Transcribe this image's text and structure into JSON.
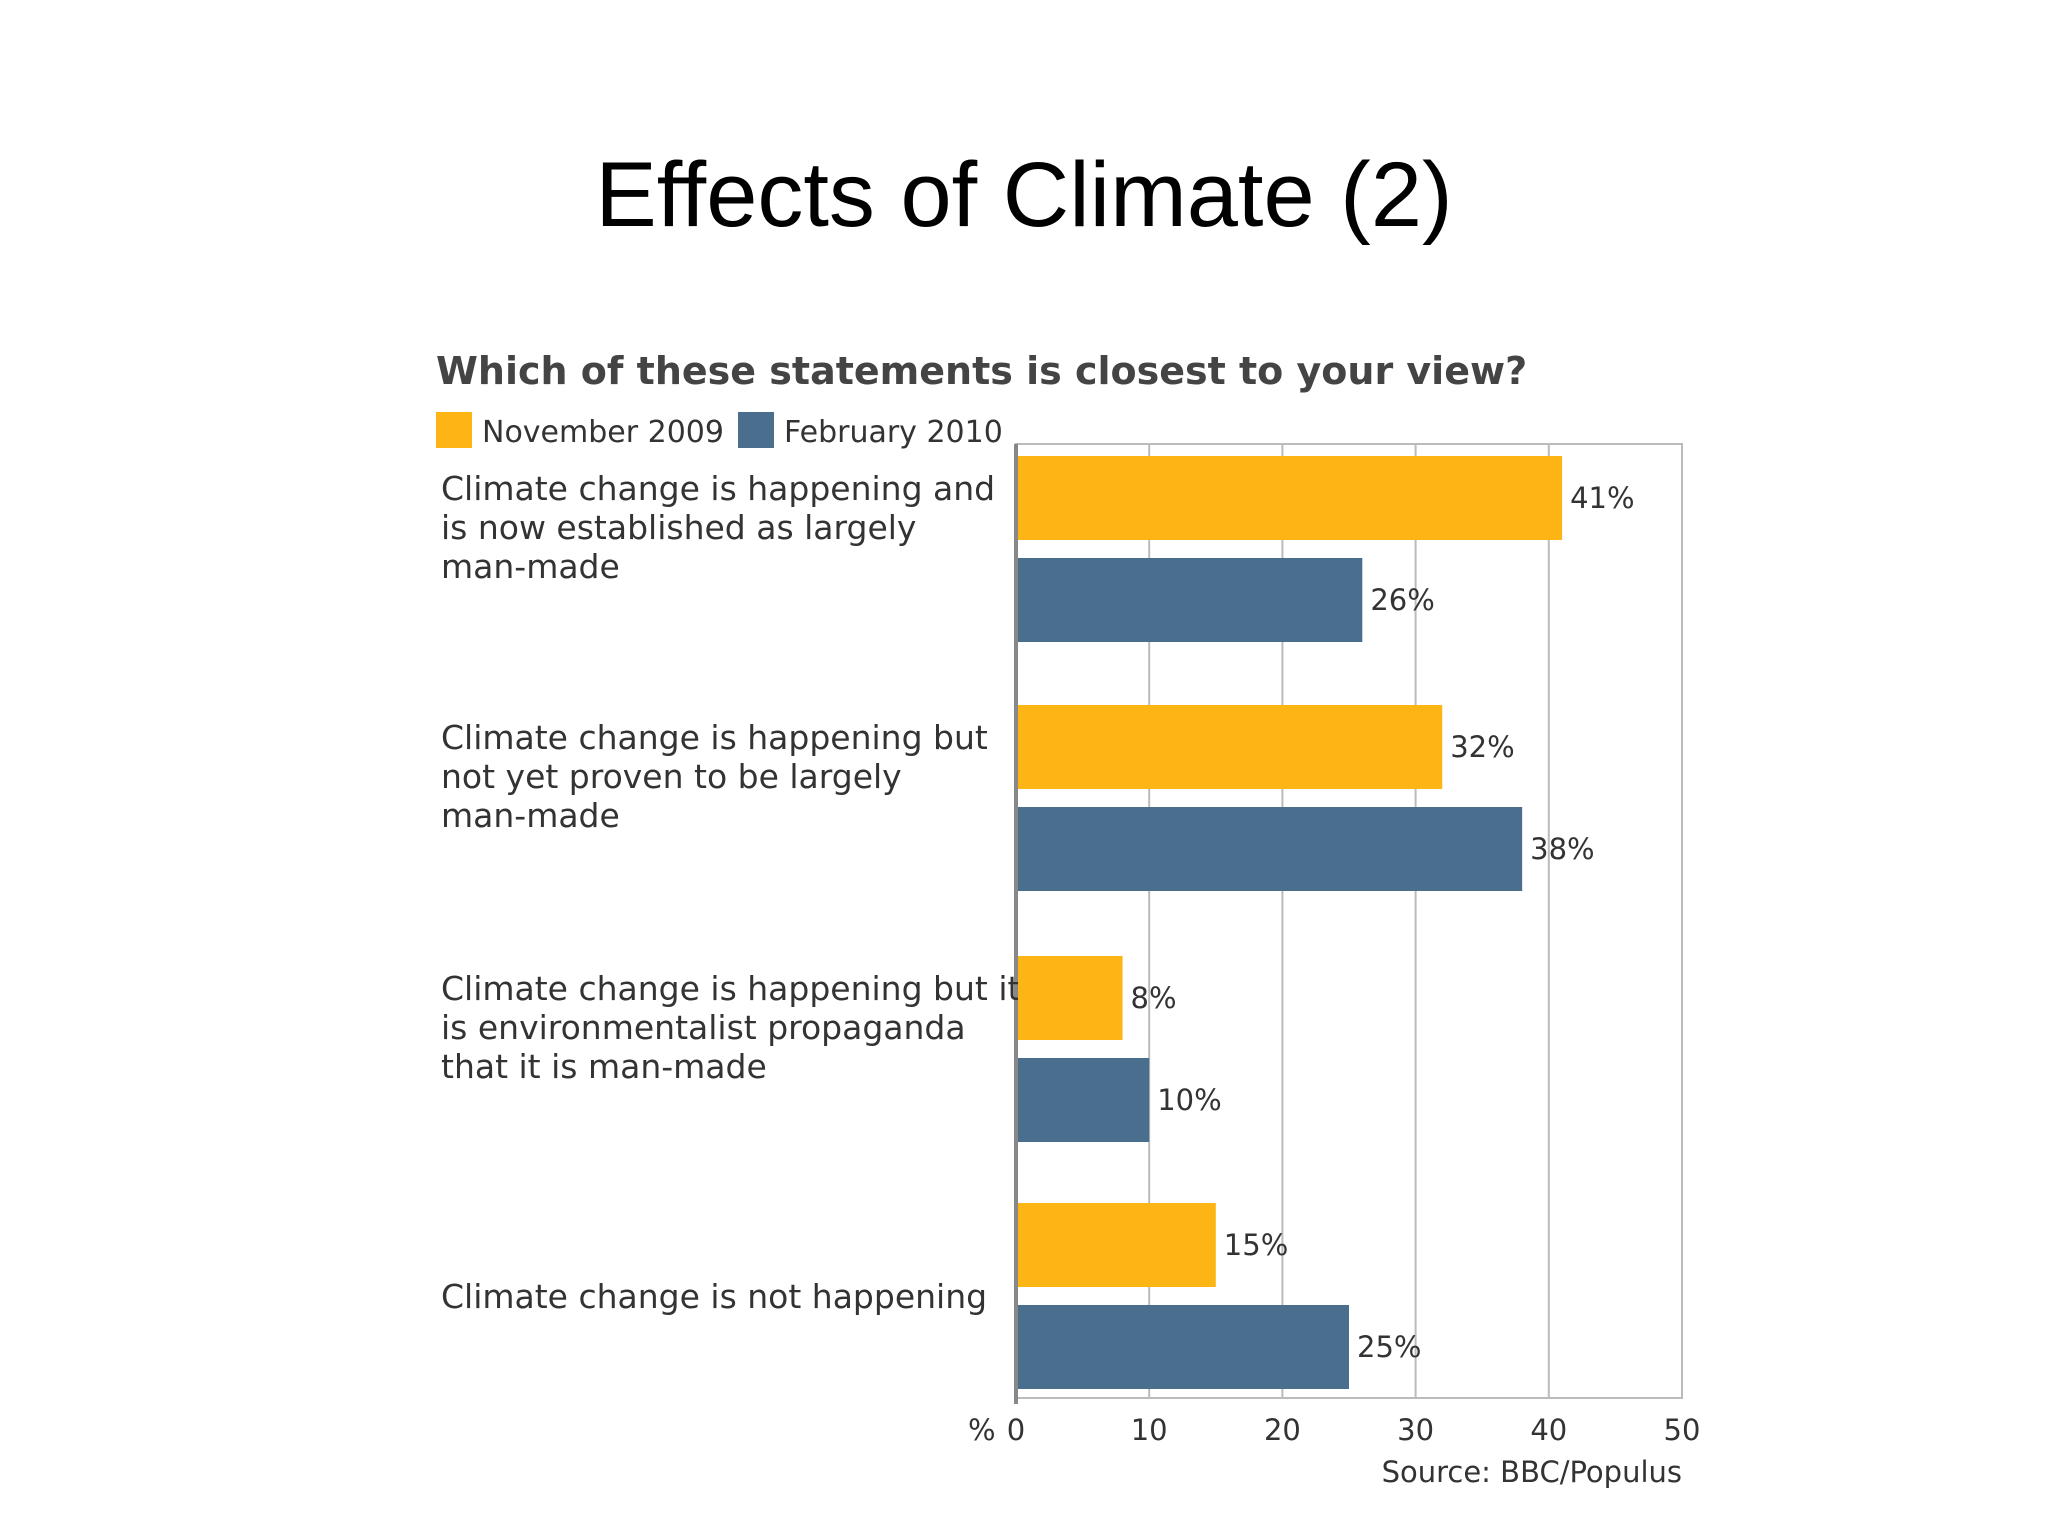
{
  "slide": {
    "title": "Effects of Climate (2)"
  },
  "colors": {
    "nov": "#FDB515",
    "feb": "#4A6F8E",
    "grid": "#BBBBBB",
    "frame": "#BBBBBB",
    "axis": "#888888"
  },
  "chart_data": {
    "type": "bar",
    "orientation": "horizontal",
    "title": "Which of these statements is closest to your view?",
    "categories": [
      [
        "Climate change is happening and",
        "is now established as largely",
        "man-made"
      ],
      [
        "Climate change is happening but",
        "not yet proven to be largely",
        "man-made"
      ],
      [
        "Climate change is happening but it",
        "is environmentalist propaganda",
        "that it is man-made"
      ],
      [
        "Climate change is not happening"
      ]
    ],
    "series": [
      {
        "name": "November 2009",
        "values": [
          41,
          32,
          8,
          15
        ],
        "labels": [
          "41%",
          "32%",
          "8%",
          "15%"
        ]
      },
      {
        "name": "February 2010",
        "values": [
          26,
          38,
          10,
          25
        ],
        "labels": [
          "26%",
          "38%",
          "10%",
          "25%"
        ]
      }
    ],
    "xlabel": "%",
    "xlim": [
      0,
      50
    ],
    "xticks": [
      "0",
      "10",
      "20",
      "30",
      "40",
      "50"
    ],
    "grid": true,
    "legend": "top-left",
    "source": "Source: BBC/Populus"
  }
}
